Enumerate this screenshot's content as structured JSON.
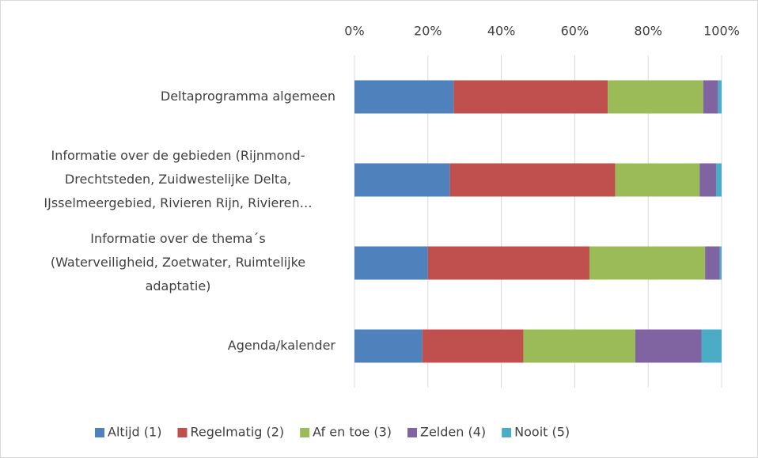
{
  "chart_data": {
    "type": "stacked-bar-horizontal",
    "categories": [
      [
        "Deltaprogramma algemeen"
      ],
      [
        "Informatie over de gebieden (Rijnmond-",
        "Drechtsteden, Zuidwestelijke Delta,",
        "IJsselmeergebied, Rivieren Rijn, Rivieren…"
      ],
      [
        "Informatie over de thema´s",
        "(Waterveiligheid, Zoetwater, Ruimtelijke",
        "adaptatie)"
      ],
      [
        "Agenda/kalender"
      ]
    ],
    "series": [
      {
        "name": "Altijd (1)",
        "color": "#4f81bd",
        "values": [
          27,
          26,
          20,
          18.5
        ]
      },
      {
        "name": "Regelmatig (2)",
        "color": "#c0504d",
        "values": [
          42,
          45,
          44,
          27.5
        ]
      },
      {
        "name": "Af en toe (3)",
        "color": "#9bbb59",
        "values": [
          26,
          23,
          31.5,
          30.5
        ]
      },
      {
        "name": "Zelden (4)",
        "color": "#8064a2",
        "values": [
          4,
          4.5,
          4,
          18
        ]
      },
      {
        "name": "Nooit (5)",
        "color": "#4bacc6",
        "values": [
          1,
          1.5,
          0.5,
          5.5
        ]
      }
    ],
    "xlim": [
      0,
      100
    ],
    "xticks": [
      {
        "value": 0,
        "label": "0%"
      },
      {
        "value": 20,
        "label": "20%"
      },
      {
        "value": 40,
        "label": "40%"
      },
      {
        "value": 60,
        "label": "60%"
      },
      {
        "value": 80,
        "label": "80%"
      },
      {
        "value": 100,
        "label": "100%"
      }
    ],
    "grid": true,
    "legend": "bottom"
  }
}
